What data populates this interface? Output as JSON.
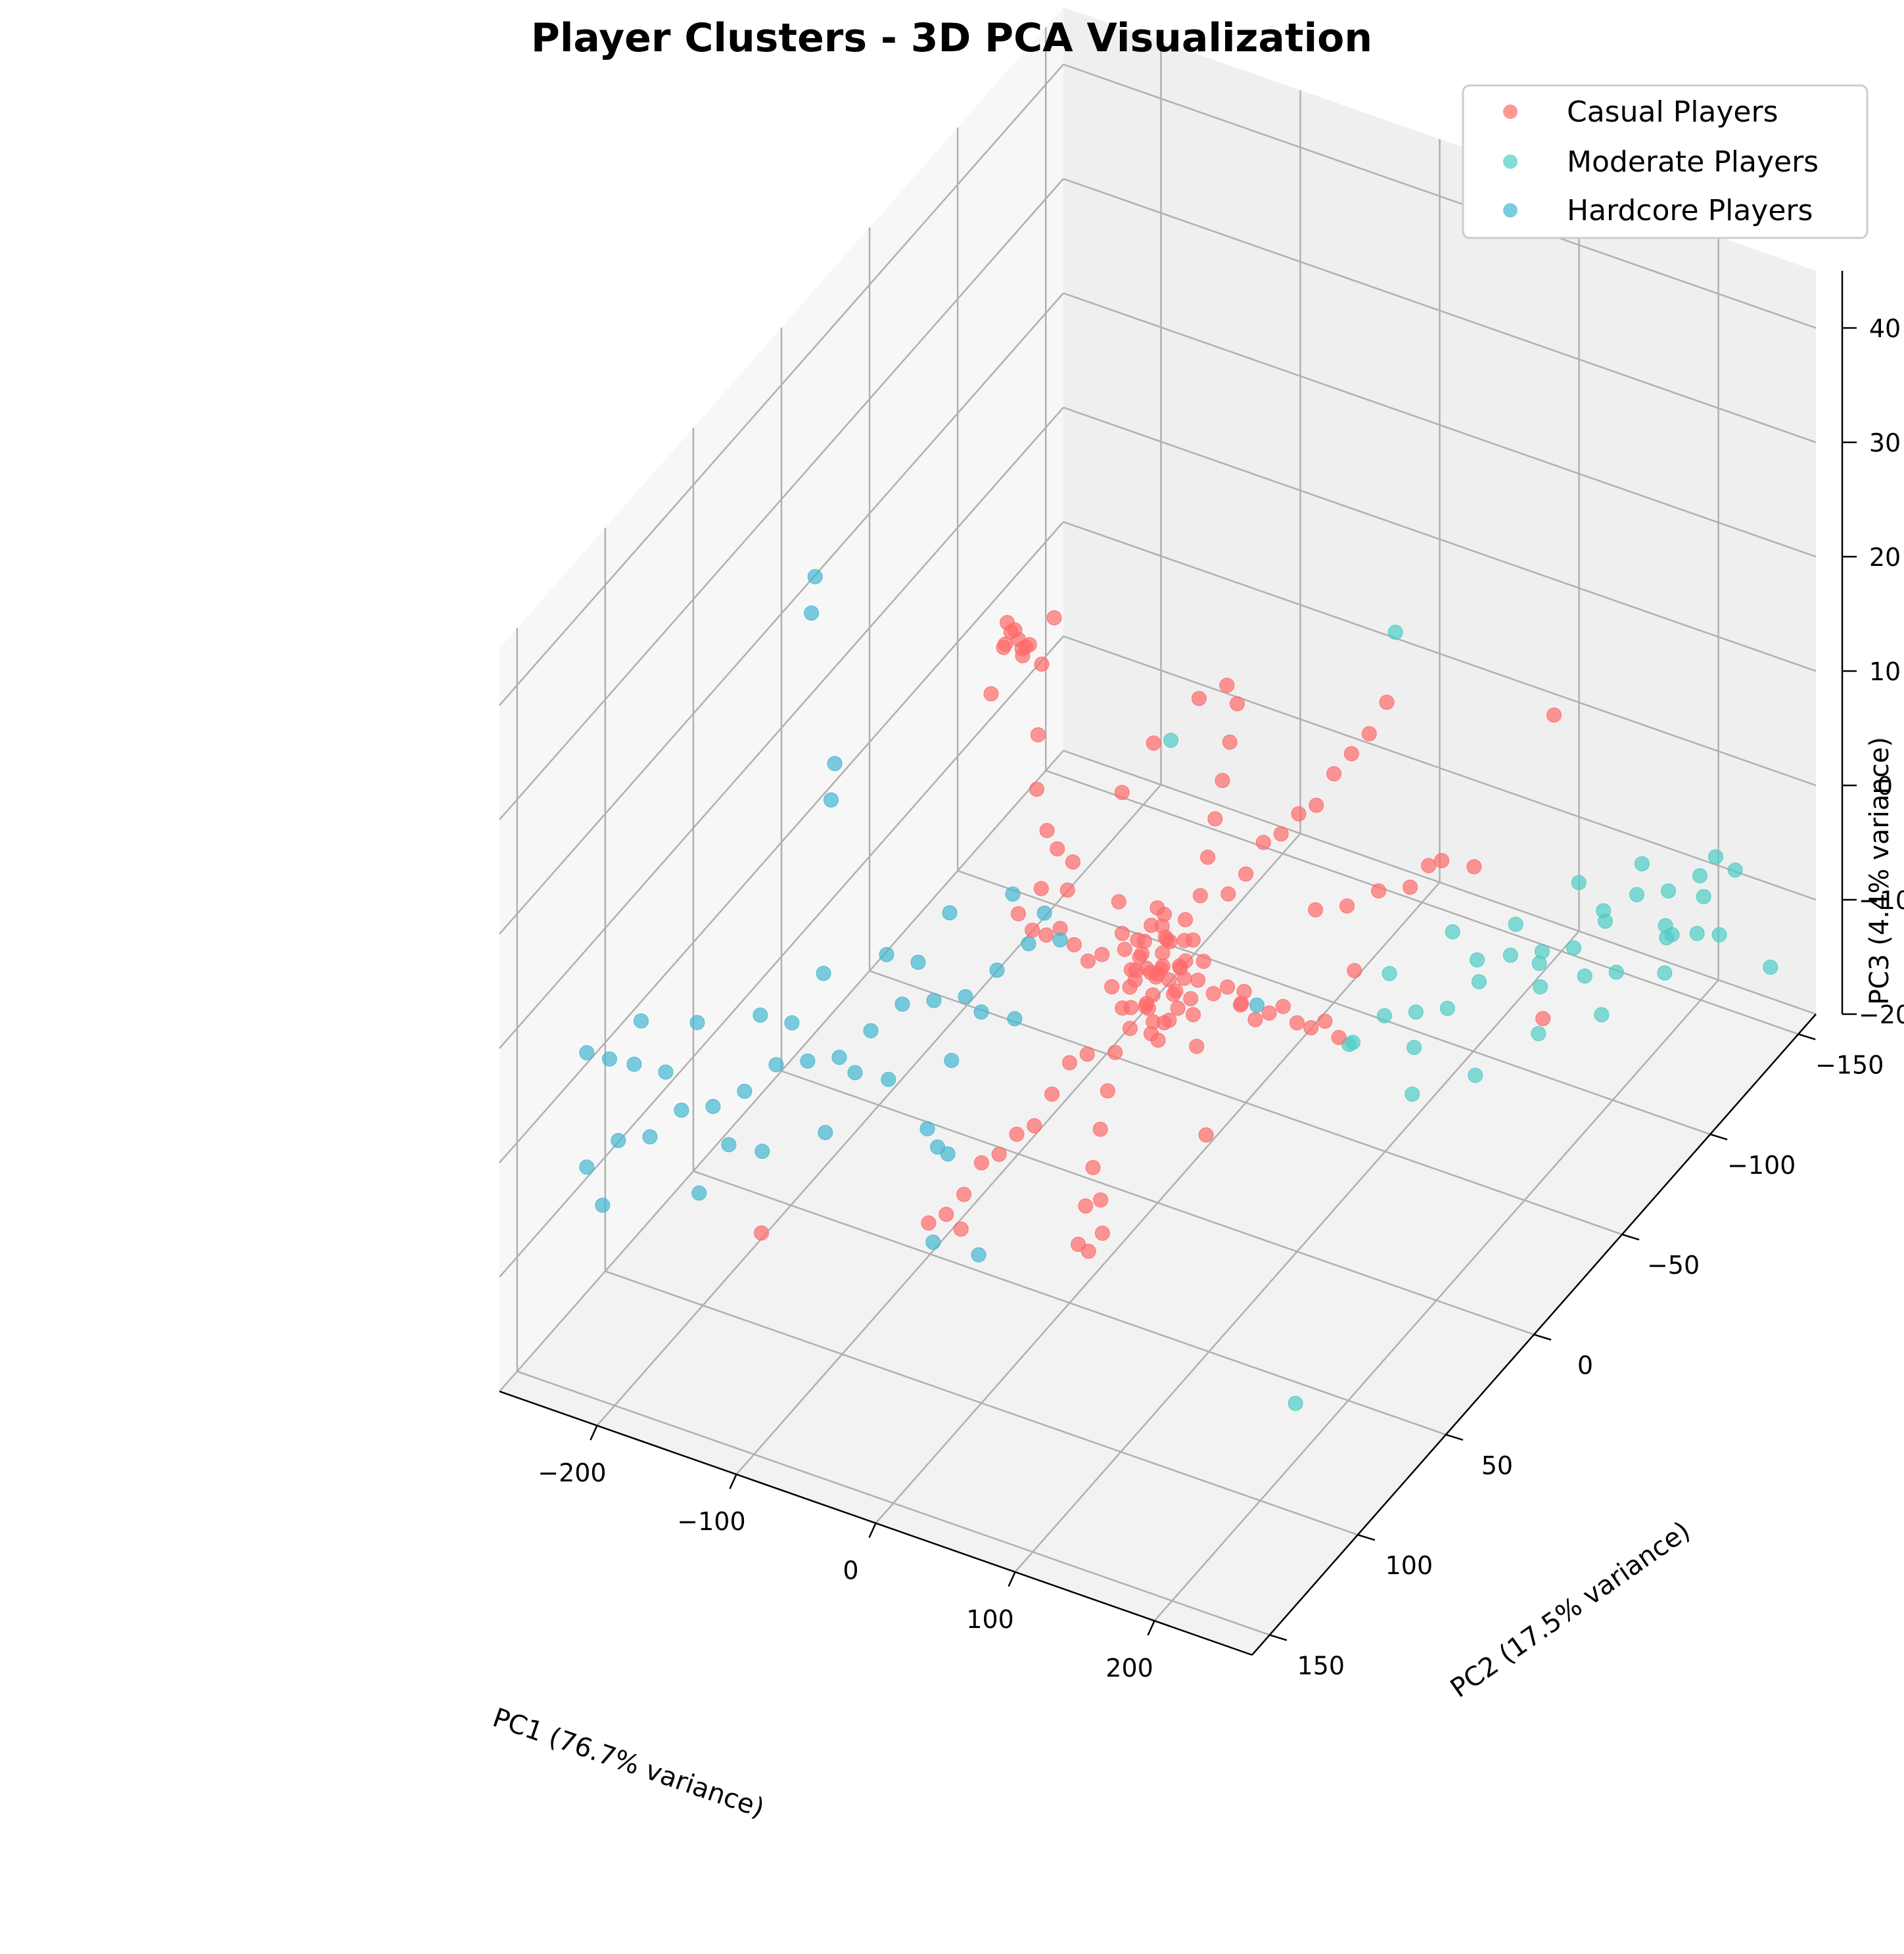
{
  "chart_data": {
    "type": "scatter",
    "projection": "3d",
    "title": "Player Clusters - 3D PCA Visualization",
    "xlabel": "PC1 (76.7% variance)",
    "ylabel": "PC2 (17.5% variance)",
    "zlabel": "PC3 (4.4% variance)",
    "xlim": [
      -270,
      270
    ],
    "ylim": [
      -160,
      160
    ],
    "zlim": [
      -20,
      45
    ],
    "xticks": [
      -200,
      -100,
      0,
      100,
      200
    ],
    "yticks": [
      -150,
      -100,
      -50,
      0,
      50,
      100,
      150
    ],
    "zticks": [
      -20,
      -10,
      0,
      10,
      20,
      30,
      40
    ],
    "xtick_labels": [
      "−200",
      "−100",
      "0",
      "100",
      "200"
    ],
    "ytick_labels": [
      "−150",
      "−100",
      "−50",
      "0",
      "50",
      "100",
      "150"
    ],
    "ztick_labels": [
      "−20",
      "−10",
      "0",
      "10",
      "20",
      "30",
      "40"
    ],
    "grid": true,
    "legend_position": "top-right",
    "series": [
      {
        "name": "Casual Players",
        "color": "#FF6B6B",
        "points": [
          [
            0,
            0,
            0
          ],
          [
            5,
            2,
            1
          ],
          [
            -5,
            -3,
            -1
          ],
          [
            10,
            5,
            2
          ],
          [
            -10,
            -4,
            -1
          ],
          [
            3,
            -2,
            3
          ],
          [
            -3,
            4,
            -2
          ],
          [
            8,
            -6,
            0
          ],
          [
            -8,
            6,
            1
          ],
          [
            12,
            3,
            -3
          ],
          [
            -12,
            -2,
            2
          ],
          [
            15,
            -1,
            1
          ],
          [
            -15,
            1,
            -1
          ],
          [
            2,
            8,
            2
          ],
          [
            -2,
            -8,
            -2
          ],
          [
            6,
            10,
            -1
          ],
          [
            -6,
            -10,
            1
          ],
          [
            18,
            4,
            0
          ],
          [
            -18,
            -4,
            0
          ],
          [
            20,
            0,
            2
          ],
          [
            -20,
            0,
            -2
          ],
          [
            4,
            -12,
            1
          ],
          [
            -4,
            12,
            -1
          ],
          [
            9,
            14,
            0
          ],
          [
            -9,
            -14,
            0
          ],
          [
            14,
            -9,
            2
          ],
          [
            -14,
            9,
            -2
          ],
          [
            22,
            6,
            -1
          ],
          [
            -22,
            -6,
            1
          ],
          [
            25,
            -3,
            0
          ],
          [
            0,
            15,
            3
          ],
          [
            0,
            -15,
            -3
          ],
          [
            7,
            3,
            5
          ],
          [
            -7,
            -3,
            -5
          ],
          [
            11,
            -7,
            4
          ],
          [
            -11,
            7,
            -4
          ],
          [
            16,
            9,
            -2
          ],
          [
            -16,
            -9,
            2
          ],
          [
            1,
            1,
            6
          ],
          [
            -1,
            -1,
            -6
          ],
          [
            24,
            10,
            1
          ],
          [
            -24,
            -10,
            -1
          ],
          [
            28,
            2,
            -2
          ],
          [
            -28,
            -2,
            2
          ],
          [
            13,
            13,
            1
          ],
          [
            -13,
            -13,
            -1
          ],
          [
            19,
            -11,
            0
          ],
          [
            -19,
            11,
            0
          ],
          [
            30,
            5,
            0
          ],
          [
            -30,
            -5,
            0
          ],
          [
            40,
            0,
            0
          ],
          [
            50,
            0,
            1
          ],
          [
            60,
            0,
            0
          ],
          [
            70,
            0,
            -1
          ],
          [
            80,
            0,
            0
          ],
          [
            90,
            0,
            1
          ],
          [
            100,
            0,
            0
          ],
          [
            110,
            0,
            0
          ],
          [
            120,
            0,
            1
          ],
          [
            130,
            0,
            0
          ],
          [
            -40,
            0,
            0
          ],
          [
            -50,
            0,
            -1
          ],
          [
            -60,
            0,
            0
          ],
          [
            -70,
            0,
            1
          ],
          [
            -80,
            0,
            0
          ],
          [
            -90,
            0,
            0
          ],
          [
            -100,
            0,
            1
          ],
          [
            0,
            40,
            0
          ],
          [
            0,
            50,
            1
          ],
          [
            0,
            60,
            0
          ],
          [
            0,
            70,
            -1
          ],
          [
            0,
            80,
            0
          ],
          [
            0,
            90,
            0
          ],
          [
            0,
            100,
            1
          ],
          [
            0,
            110,
            0
          ],
          [
            0,
            120,
            0
          ],
          [
            0,
            130,
            1
          ],
          [
            0,
            -40,
            0
          ],
          [
            0,
            -50,
            0
          ],
          [
            0,
            -60,
            1
          ],
          [
            0,
            -70,
            0
          ],
          [
            0,
            -80,
            0
          ],
          [
            0,
            -90,
            -1
          ],
          [
            0,
            -100,
            0
          ],
          [
            0,
            -110,
            0
          ],
          [
            0,
            -120,
            0
          ],
          [
            0,
            -130,
            1
          ],
          [
            20,
            40,
            1
          ],
          [
            40,
            60,
            2
          ],
          [
            60,
            80,
            3
          ],
          [
            80,
            100,
            4
          ],
          [
            100,
            120,
            5
          ],
          [
            120,
            140,
            6
          ],
          [
            140,
            150,
            8
          ],
          [
            150,
            150,
            10
          ],
          [
            155,
            155,
            14
          ],
          [
            -20,
            -40,
            -1
          ],
          [
            -40,
            -60,
            -2
          ],
          [
            -60,
            -80,
            -3
          ],
          [
            -80,
            -100,
            -4
          ],
          [
            -100,
            -120,
            -5
          ],
          [
            -120,
            -140,
            -6
          ],
          [
            -140,
            -150,
            -7
          ],
          [
            -160,
            -150,
            -9
          ],
          [
            -180,
            -140,
            -12
          ],
          [
            -190,
            -130,
            -15
          ],
          [
            -200,
            -110,
            -18
          ],
          [
            -210,
            -100,
            -19
          ],
          [
            -150,
            -50,
            1
          ],
          [
            -130,
            -40,
            0
          ],
          [
            -110,
            -30,
            1
          ],
          [
            -90,
            -20,
            0
          ],
          [
            60,
            -60,
            -2
          ],
          [
            80,
            -80,
            -3
          ],
          [
            70,
            -70,
            -2
          ],
          [
            50,
            -50,
            -1
          ],
          [
            90,
            -90,
            -2
          ],
          [
            30,
            20,
            10
          ],
          [
            -30,
            -20,
            -10
          ],
          [
            10,
            30,
            12
          ],
          [
            -10,
            -30,
            -12
          ],
          [
            -60,
            40,
            33
          ],
          [
            -40,
            45,
            34
          ],
          [
            -20,
            50,
            35
          ],
          [
            -50,
            55,
            32
          ],
          [
            -30,
            35,
            36
          ],
          [
            -70,
            30,
            33
          ],
          [
            -10,
            60,
            31
          ],
          [
            -80,
            20,
            30
          ],
          [
            -90,
            10,
            28
          ],
          [
            -100,
            0,
            25
          ],
          [
            -110,
            -10,
            22
          ],
          [
            -120,
            -20,
            20
          ],
          [
            -130,
            -30,
            18
          ],
          [
            -160,
            -40,
            15
          ],
          [
            100,
            30,
            8
          ],
          [
            110,
            40,
            9
          ],
          [
            60,
            20,
            -8
          ],
          [
            -40,
            80,
            -10
          ],
          [
            40,
            -80,
            -12
          ],
          [
            150,
            -100,
            -15
          ],
          [
            -120,
            130,
            -5
          ],
          [
            120,
            -130,
            5
          ],
          [
            30,
            -130,
            -12
          ],
          [
            50,
            -140,
            -13
          ]
        ]
      },
      {
        "name": "Moderate Players",
        "color": "#4ECDC4",
        "points": [
          [
            140,
            0,
            0
          ],
          [
            150,
            -10,
            1
          ],
          [
            160,
            -20,
            0
          ],
          [
            170,
            -30,
            -1
          ],
          [
            180,
            -40,
            0
          ],
          [
            190,
            -50,
            1
          ],
          [
            200,
            -60,
            0
          ],
          [
            210,
            -70,
            -1
          ],
          [
            220,
            -80,
            0
          ],
          [
            230,
            -90,
            1
          ],
          [
            240,
            -100,
            0
          ],
          [
            250,
            -110,
            0
          ],
          [
            255,
            -115,
            1
          ],
          [
            150,
            10,
            2
          ],
          [
            165,
            -15,
            -2
          ],
          [
            185,
            -35,
            3
          ],
          [
            205,
            -55,
            -2
          ],
          [
            225,
            -75,
            2
          ],
          [
            245,
            -95,
            -3
          ],
          [
            160,
            -5,
            6
          ],
          [
            180,
            -25,
            7
          ],
          [
            200,
            -45,
            5
          ],
          [
            220,
            -65,
            6
          ],
          [
            240,
            -85,
            5
          ],
          [
            170,
            -10,
            -5
          ],
          [
            190,
            -30,
            -6
          ],
          [
            210,
            -50,
            -5
          ],
          [
            230,
            -70,
            -6
          ],
          [
            250,
            -90,
            -5
          ],
          [
            240,
            -120,
            -4
          ],
          [
            250,
            -130,
            -3
          ],
          [
            230,
            -110,
            -6
          ],
          [
            245,
            -125,
            -8
          ],
          [
            200,
            -130,
            -10
          ],
          [
            210,
            -140,
            -12
          ],
          [
            180,
            -100,
            -10
          ],
          [
            190,
            -110,
            -11
          ],
          [
            160,
            -90,
            -8
          ],
          [
            250,
            -150,
            -15
          ],
          [
            60,
            40,
            30
          ],
          [
            120,
            -40,
            28
          ],
          [
            200,
            80,
            -15
          ]
        ]
      },
      {
        "name": "Hardcore Players",
        "color": "#45B7D1",
        "points": [
          [
            -70,
            0,
            0
          ],
          [
            -80,
            10,
            1
          ],
          [
            -90,
            20,
            0
          ],
          [
            -100,
            30,
            -1
          ],
          [
            -110,
            40,
            0
          ],
          [
            -120,
            50,
            1
          ],
          [
            -130,
            60,
            0
          ],
          [
            -140,
            70,
            -1
          ],
          [
            -150,
            80,
            0
          ],
          [
            -160,
            90,
            1
          ],
          [
            -170,
            100,
            0
          ],
          [
            -180,
            110,
            0
          ],
          [
            -190,
            120,
            1
          ],
          [
            -200,
            130,
            0
          ],
          [
            -210,
            140,
            1
          ],
          [
            -220,
            150,
            0
          ],
          [
            -75,
            5,
            3
          ],
          [
            -95,
            25,
            -3
          ],
          [
            -115,
            45,
            4
          ],
          [
            -135,
            65,
            -3
          ],
          [
            -155,
            85,
            4
          ],
          [
            -175,
            105,
            -4
          ],
          [
            -195,
            125,
            5
          ],
          [
            -215,
            145,
            -4
          ],
          [
            -85,
            15,
            6
          ],
          [
            -105,
            35,
            7
          ],
          [
            -125,
            55,
            6
          ],
          [
            -145,
            75,
            7
          ],
          [
            -165,
            95,
            6
          ],
          [
            -185,
            115,
            8
          ],
          [
            -205,
            135,
            7
          ],
          [
            -90,
            10,
            -6
          ],
          [
            -110,
            30,
            -7
          ],
          [
            -130,
            50,
            -6
          ],
          [
            -150,
            70,
            -8
          ],
          [
            -170,
            90,
            -7
          ],
          [
            -190,
            110,
            -8
          ],
          [
            -220,
            150,
            10
          ],
          [
            -210,
            145,
            9
          ],
          [
            -200,
            135,
            11
          ],
          [
            -60,
            80,
            -12
          ],
          [
            -40,
            70,
            -14
          ],
          [
            -120,
            30,
            -15
          ],
          [
            -100,
            40,
            -13
          ],
          [
            -140,
            20,
            -16
          ],
          [
            -170,
            60,
            38
          ],
          [
            -160,
            70,
            37
          ],
          [
            -80,
            120,
            36
          ],
          [
            -70,
            130,
            35
          ],
          [
            -30,
            -80,
            -18
          ]
        ]
      }
    ]
  }
}
